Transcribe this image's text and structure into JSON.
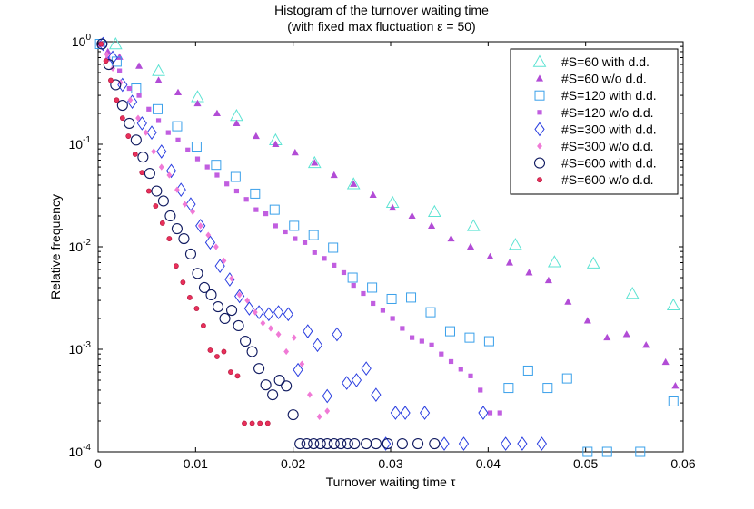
{
  "chart_data": {
    "type": "scatter",
    "title": "Histogram of the turnover waiting time",
    "subtitle": "(with fixed max fluctuation ε = 50)",
    "xlabel": "Turnover waiting time τ",
    "ylabel": "Relative frequency",
    "xlim": [
      0,
      0.06
    ],
    "ylim": [
      0.0001,
      1
    ],
    "yscale": "log",
    "xticks": [
      {
        "value": 0,
        "label": "0"
      },
      {
        "value": 0.01,
        "label": "0.01"
      },
      {
        "value": 0.02,
        "label": "0.02"
      },
      {
        "value": 0.03,
        "label": "0.03"
      },
      {
        "value": 0.04,
        "label": "0.04"
      },
      {
        "value": 0.05,
        "label": "0.05"
      },
      {
        "value": 0.06,
        "label": "0.06"
      }
    ],
    "yticks": [
      {
        "value": 0.0001,
        "base": "10",
        "exp": "-4"
      },
      {
        "value": 0.001,
        "base": "10",
        "exp": "-3"
      },
      {
        "value": 0.01,
        "base": "10",
        "exp": "-2"
      },
      {
        "value": 0.1,
        "base": "10",
        "exp": "-1"
      },
      {
        "value": 1,
        "base": "10",
        "exp": "0"
      }
    ],
    "legend_position": "top-right",
    "series": [
      {
        "name": "#S=60 with d.d.",
        "marker": "triangle",
        "color": "#5ee3d3",
        "filled": false,
        "x": [
          0.0018,
          0.0062,
          0.0102,
          0.0142,
          0.0182,
          0.0222,
          0.0262,
          0.0302,
          0.0345,
          0.0385,
          0.0428,
          0.0468,
          0.0508,
          0.0548,
          0.059
        ],
        "y": [
          0.95,
          0.52,
          0.29,
          0.19,
          0.11,
          0.066,
          0.041,
          0.027,
          0.022,
          0.016,
          0.0105,
          0.0071,
          0.0069,
          0.0035,
          0.0027
        ]
      },
      {
        "name": "#S=60 w/o d.d.",
        "marker": "triangle",
        "color": "#b24cd6",
        "filled": true,
        "x": [
          0.0003,
          0.001,
          0.0022,
          0.0042,
          0.0062,
          0.0082,
          0.0102,
          0.0122,
          0.0142,
          0.0162,
          0.0182,
          0.0202,
          0.0222,
          0.0242,
          0.0262,
          0.0282,
          0.0302,
          0.0322,
          0.0342,
          0.0362,
          0.0382,
          0.0402,
          0.0422,
          0.0442,
          0.0462,
          0.0482,
          0.0502,
          0.0522,
          0.0542,
          0.0562,
          0.0582,
          0.0592
        ],
        "y": [
          0.95,
          0.8,
          0.71,
          0.58,
          0.42,
          0.32,
          0.25,
          0.2,
          0.16,
          0.12,
          0.1,
          0.083,
          0.066,
          0.05,
          0.041,
          0.032,
          0.024,
          0.02,
          0.016,
          0.012,
          0.01,
          0.008,
          0.007,
          0.0056,
          0.0047,
          0.0029,
          0.0019,
          0.0013,
          0.0014,
          0.0011,
          0.00075,
          0.00044
        ]
      },
      {
        "name": "#S=120 with d.d.",
        "marker": "square",
        "color": "#3aa0ea",
        "filled": false,
        "x": [
          0.0002,
          0.0019,
          0.0039,
          0.0061,
          0.0081,
          0.0101,
          0.0121,
          0.0141,
          0.0161,
          0.0181,
          0.0201,
          0.0221,
          0.0241,
          0.0261,
          0.0281,
          0.0301,
          0.0321,
          0.0341,
          0.0361,
          0.0381,
          0.0401,
          0.0421,
          0.0441,
          0.0461,
          0.0481,
          0.0502,
          0.0522,
          0.0556,
          0.059
        ],
        "y": [
          0.95,
          0.64,
          0.35,
          0.22,
          0.15,
          0.095,
          0.063,
          0.048,
          0.033,
          0.023,
          0.016,
          0.013,
          0.0098,
          0.005,
          0.004,
          0.0031,
          0.0032,
          0.0023,
          0.0015,
          0.0013,
          0.0012,
          0.00042,
          0.00062,
          0.00042,
          0.00052,
          0.0001,
          0.0001,
          0.0001,
          0.00031
        ]
      },
      {
        "name": "#S=120 w/o d.d.",
        "marker": "smallsquare",
        "color": "#c15ee0",
        "filled": true,
        "x": [
          0.0003,
          0.001,
          0.0022,
          0.0032,
          0.0042,
          0.0052,
          0.0062,
          0.0072,
          0.0082,
          0.0092,
          0.0102,
          0.0112,
          0.0122,
          0.0132,
          0.0142,
          0.0152,
          0.0162,
          0.0172,
          0.0182,
          0.0192,
          0.0202,
          0.0212,
          0.0222,
          0.0232,
          0.0242,
          0.0252,
          0.0262,
          0.0272,
          0.0282,
          0.0292,
          0.0302,
          0.0312,
          0.0322,
          0.0332,
          0.0342,
          0.0352,
          0.0362,
          0.0372,
          0.0382,
          0.0392,
          0.0402,
          0.0412
        ],
        "y": [
          0.95,
          0.68,
          0.52,
          0.35,
          0.3,
          0.22,
          0.17,
          0.13,
          0.11,
          0.088,
          0.072,
          0.06,
          0.05,
          0.041,
          0.035,
          0.029,
          0.023,
          0.021,
          0.016,
          0.014,
          0.012,
          0.011,
          0.0088,
          0.0077,
          0.0066,
          0.0056,
          0.0042,
          0.0035,
          0.0028,
          0.0024,
          0.002,
          0.0016,
          0.0013,
          0.0012,
          0.0011,
          0.0009,
          0.00076,
          0.00064,
          0.00055,
          0.0004,
          0.00024,
          0.00024
        ]
      },
      {
        "name": "#S=300 with d.d.",
        "marker": "diamond",
        "color": "#2a3ee0",
        "filled": false,
        "x": [
          0.0005,
          0.0015,
          0.0025,
          0.0035,
          0.0045,
          0.0055,
          0.0065,
          0.0075,
          0.0085,
          0.0095,
          0.0105,
          0.0115,
          0.0125,
          0.0135,
          0.0145,
          0.0155,
          0.0165,
          0.0175,
          0.0185,
          0.0195,
          0.0205,
          0.0215,
          0.0225,
          0.0235,
          0.0245,
          0.0255,
          0.0265,
          0.0275,
          0.0285,
          0.0295,
          0.0305,
          0.0315,
          0.0335,
          0.0355,
          0.0375,
          0.0395,
          0.0418,
          0.0435,
          0.0455
        ],
        "y": [
          0.95,
          0.7,
          0.38,
          0.26,
          0.16,
          0.13,
          0.085,
          0.055,
          0.036,
          0.026,
          0.016,
          0.011,
          0.0065,
          0.0048,
          0.0033,
          0.0025,
          0.0023,
          0.0022,
          0.0023,
          0.0022,
          0.00063,
          0.0015,
          0.0011,
          0.00035,
          0.0014,
          0.00047,
          0.0005,
          0.00065,
          0.00036,
          0.00012,
          0.00024,
          0.00024,
          0.00024,
          0.00012,
          0.00012,
          0.00024,
          0.00012,
          0.00012,
          0.00012
        ]
      },
      {
        "name": "#S=300 w/o d.d.",
        "marker": "smalldiamond",
        "color": "#f07ad6",
        "filled": true,
        "x": [
          0.0003,
          0.0009,
          0.0015,
          0.0023,
          0.0033,
          0.0041,
          0.0049,
          0.0057,
          0.0065,
          0.0073,
          0.0081,
          0.0089,
          0.0097,
          0.0105,
          0.0113,
          0.0121,
          0.0129,
          0.0137,
          0.0145,
          0.0153,
          0.0161,
          0.0169,
          0.0177,
          0.0185,
          0.0193,
          0.0201,
          0.0209,
          0.0217,
          0.0227,
          0.0235
        ],
        "y": [
          0.95,
          0.75,
          0.55,
          0.4,
          0.27,
          0.18,
          0.13,
          0.085,
          0.06,
          0.05,
          0.036,
          0.026,
          0.022,
          0.016,
          0.013,
          0.01,
          0.0073,
          0.0049,
          0.0034,
          0.003,
          0.0023,
          0.0018,
          0.0016,
          0.0014,
          0.00095,
          0.0013,
          0.00072,
          0.00036,
          0.00022,
          0.00025
        ]
      },
      {
        "name": "#S=600 with d.d.",
        "marker": "circle",
        "color": "#101a60",
        "filled": false,
        "x": [
          0.0004,
          0.0011,
          0.0018,
          0.0025,
          0.0032,
          0.0039,
          0.0046,
          0.0053,
          0.006,
          0.0067,
          0.0074,
          0.0081,
          0.0088,
          0.0095,
          0.0102,
          0.0109,
          0.0116,
          0.0123,
          0.013,
          0.0137,
          0.0144,
          0.0151,
          0.0158,
          0.0165,
          0.0172,
          0.0179,
          0.0186,
          0.0193,
          0.02,
          0.0207,
          0.0214,
          0.0221,
          0.0228,
          0.0235,
          0.0242,
          0.0249,
          0.0256,
          0.0263,
          0.0275,
          0.0285,
          0.0297,
          0.0312,
          0.0328,
          0.0345
        ],
        "y": [
          0.95,
          0.6,
          0.38,
          0.24,
          0.16,
          0.11,
          0.075,
          0.052,
          0.035,
          0.028,
          0.02,
          0.015,
          0.012,
          0.0085,
          0.0055,
          0.004,
          0.0034,
          0.0026,
          0.002,
          0.0024,
          0.0017,
          0.0012,
          0.00095,
          0.00065,
          0.00045,
          0.00036,
          0.0005,
          0.00044,
          0.00023,
          0.00012,
          0.00012,
          0.00012,
          0.00012,
          0.00012,
          0.00012,
          0.00012,
          0.00012,
          0.00012,
          0.00012,
          0.00012,
          0.00012,
          0.00012,
          0.00012,
          0.00012
        ]
      },
      {
        "name": "#S=600 w/o d.d.",
        "marker": "dot",
        "color": "#e8305a",
        "filled": true,
        "x": [
          0.0003,
          0.0008,
          0.0013,
          0.0019,
          0.0025,
          0.0031,
          0.0038,
          0.0045,
          0.0052,
          0.0059,
          0.0066,
          0.0073,
          0.008,
          0.0087,
          0.0094,
          0.0101,
          0.0108,
          0.0115,
          0.0122,
          0.0129,
          0.0136,
          0.0143,
          0.015,
          0.0158,
          0.0166,
          0.0174
        ],
        "y": [
          0.95,
          0.65,
          0.42,
          0.27,
          0.18,
          0.12,
          0.08,
          0.053,
          0.035,
          0.025,
          0.017,
          0.012,
          0.0065,
          0.0045,
          0.0032,
          0.0025,
          0.0017,
          0.00098,
          0.00085,
          0.00095,
          0.0006,
          0.00055,
          0.00019,
          0.00019,
          0.00019,
          0.00019
        ]
      }
    ]
  }
}
